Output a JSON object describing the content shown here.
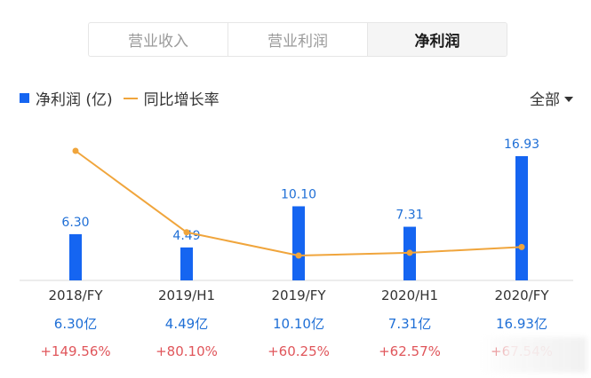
{
  "tabs": [
    {
      "label": "营业收入",
      "active": false
    },
    {
      "label": "营业利润",
      "active": false
    },
    {
      "label": "净利润",
      "active": true
    }
  ],
  "legend": {
    "bar_label": "净利润 (亿)",
    "line_label": "同比增长率"
  },
  "filter": {
    "label": "全部"
  },
  "colors": {
    "bar": "#1565f1",
    "line": "#f0a53c",
    "value_text": "#1f6fd6",
    "growth_text": "#e0565b"
  },
  "chart_data": {
    "type": "bar",
    "categories": [
      "2018/FY",
      "2019/H1",
      "2019/FY",
      "2020/H1",
      "2020/FY"
    ],
    "series": [
      {
        "values": [
          6.3,
          4.49,
          10.1,
          7.31,
          16.93
        ]
      },
      {
        "values": [
          149.56,
          80.1,
          60.25,
          62.57,
          67.54
        ]
      }
    ],
    "bar_labels": [
      "6.30",
      "4.49",
      "10.10",
      "7.31",
      "16.93"
    ],
    "value_row": [
      "6.30亿",
      "4.49亿",
      "10.10亿",
      "7.31亿",
      "16.93亿"
    ],
    "growth_row": [
      "+149.56%",
      "+80.10%",
      "+60.25%",
      "+62.57%",
      "+67.54%"
    ]
  }
}
